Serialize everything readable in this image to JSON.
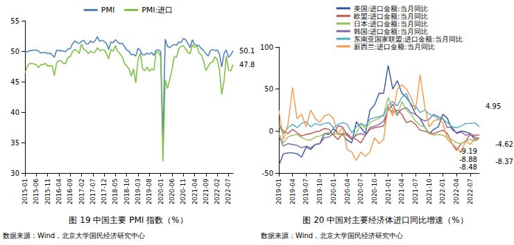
{
  "chart_data": [
    {
      "type": "line",
      "title": "图 19 中国主要 PMI 指数（%）",
      "source": "数据来源：Wind，北京大学国民经济研究中心",
      "x": [
        "2015-01",
        null,
        null,
        null,
        null,
        "2015-06",
        null,
        null,
        null,
        null,
        "2015-11",
        null,
        null,
        null,
        null,
        "2016-04",
        null,
        null,
        null,
        null,
        "2016-09",
        null,
        null,
        null,
        null,
        "2017-02",
        null,
        null,
        null,
        null,
        "2017-07",
        null,
        null,
        null,
        null,
        "2017-12",
        null,
        null,
        null,
        null,
        "2018-05",
        null,
        null,
        null,
        null,
        "2018-10",
        null,
        null,
        null,
        null,
        "2019-03",
        null,
        null,
        null,
        null,
        "2019-08",
        null,
        null,
        null,
        null,
        "2020-01",
        null,
        null,
        null,
        null,
        "2020-06",
        null,
        null,
        null,
        null,
        "2020-11",
        null,
        null,
        null,
        null,
        "2021-04",
        null,
        null,
        null,
        null,
        "2021-09",
        null,
        null,
        null,
        null,
        "2022-02",
        null,
        null,
        null,
        null,
        "2022-07",
        null,
        null
      ],
      "series": [
        {
          "name": "PMI",
          "color": "#4f81bd",
          "values": [
            49.8,
            49.9,
            50.1,
            50.1,
            50.2,
            50.2,
            50.0,
            49.7,
            49.8,
            49.8,
            49.6,
            49.7,
            49.4,
            49.0,
            50.2,
            50.1,
            50.1,
            50.0,
            49.9,
            50.4,
            50.4,
            51.2,
            51.7,
            51.4,
            51.3,
            51.6,
            51.8,
            51.2,
            51.2,
            51.7,
            51.4,
            51.7,
            52.4,
            51.6,
            51.8,
            51.6,
            51.3,
            50.3,
            51.5,
            51.4,
            51.9,
            51.5,
            51.2,
            51.3,
            50.8,
            50.2,
            50.0,
            49.4,
            49.5,
            49.2,
            50.5,
            50.1,
            49.4,
            49.4,
            49.7,
            49.5,
            49.8,
            49.3,
            50.2,
            50.2,
            50.0,
            35.7,
            52.0,
            50.8,
            50.6,
            50.9,
            51.1,
            51.0,
            51.5,
            51.4,
            52.1,
            51.9,
            51.3,
            50.6,
            51.9,
            51.1,
            51.0,
            50.9,
            50.4,
            50.1,
            49.6,
            49.2,
            50.1,
            50.3,
            50.1,
            50.2,
            49.5,
            47.4,
            49.6,
            50.2,
            49.0,
            49.4,
            50.1
          ]
        },
        {
          "name": "PMI:进口",
          "color": "#7cc142",
          "values": [
            46.4,
            47.5,
            48.0,
            48.0,
            47.9,
            47.8,
            47.3,
            47.8,
            47.8,
            48.0,
            47.6,
            47.6,
            47.6,
            46.0,
            48.1,
            48.5,
            48.4,
            48.0,
            48.0,
            49.0,
            49.1,
            49.9,
            50.3,
            50.1,
            49.6,
            51.2,
            50.3,
            50.1,
            49.6,
            50.0,
            49.8,
            49.8,
            50.6,
            50.1,
            50.2,
            50.2,
            49.6,
            48.7,
            50.3,
            50.0,
            50.9,
            50.0,
            49.6,
            49.1,
            48.0,
            47.6,
            47.1,
            45.9,
            47.1,
            44.8,
            48.7,
            49.7,
            47.1,
            46.8,
            47.4,
            46.7,
            47.1,
            46.9,
            49.8,
            49.9,
            49.0,
            31.9,
            45.3,
            43.9,
            45.3,
            47.0,
            49.1,
            49.0,
            50.4,
            50.8,
            50.9,
            50.4,
            49.8,
            49.6,
            51.1,
            50.6,
            50.9,
            49.7,
            49.4,
            48.3,
            46.8,
            47.5,
            48.1,
            48.2,
            49.1,
            48.6,
            46.9,
            42.9,
            45.1,
            49.2,
            46.9,
            46.8,
            47.8
          ]
        }
      ],
      "annotations": [
        {
          "text": "50.1",
          "series": "PMI"
        },
        {
          "text": "47.8",
          "series": "PMI:进口"
        }
      ],
      "ylim": [
        30,
        55
      ],
      "yticks": [
        30,
        35,
        40,
        45,
        50,
        55
      ],
      "grid": false,
      "legend": "top"
    },
    {
      "type": "line",
      "title": "图 20 中国对主要经济体进口同比增速（%）",
      "source": "数据来源：Wind，北京大学国民经济研究中心",
      "x": [
        "2019-01",
        null,
        null,
        "2019-04",
        null,
        null,
        "2019-07",
        null,
        null,
        "2019-10",
        null,
        null,
        "2020-01",
        null,
        null,
        "2020-04",
        null,
        null,
        "2020-07",
        null,
        null,
        "2020-10",
        null,
        null,
        "2021-01",
        null,
        null,
        "2021-04",
        null,
        null,
        "2021-07",
        null,
        null,
        "2021-10",
        null,
        null,
        "2022-01",
        null,
        null,
        "2022-04",
        null,
        null,
        "2022-07",
        null,
        null
      ],
      "series": [
        {
          "name": "美国:进口金额:当月同比",
          "color": "#2f5597",
          "values": [
            -41,
            -27,
            -26,
            -26,
            -27,
            -31,
            -19,
            -22,
            -16,
            -15,
            -3,
            -4,
            3,
            -3,
            -4,
            -11,
            -14,
            11,
            4,
            -3,
            25,
            31,
            45,
            45,
            78,
            50,
            60,
            45,
            40,
            32,
            20,
            15,
            5,
            -3,
            2,
            5,
            20,
            15,
            2,
            -2,
            0,
            -1,
            -3,
            -10,
            -8.88
          ]
        },
        {
          "name": "欧盟:进口金额:当月同比",
          "color": "#c0504d",
          "values": [
            8,
            0,
            -3,
            2,
            -2,
            -6,
            -4,
            -3,
            -1,
            0,
            3,
            2,
            -5,
            -10,
            -3,
            -3,
            -8,
            -10,
            -14,
            -5,
            2,
            4,
            5,
            6,
            28,
            22,
            25,
            20,
            10,
            12,
            8,
            1,
            0,
            -2,
            -3,
            -1,
            1,
            -3,
            -15,
            -23,
            -15,
            -12,
            -4,
            -5,
            -4.62
          ]
        },
        {
          "name": "日本:进口金额:当月同比",
          "color": "#9bbb59",
          "values": [
            -3,
            -14,
            -7,
            -5,
            -4,
            -8,
            -10,
            -11,
            -7,
            -6,
            -3,
            -2,
            -4,
            -3,
            -5,
            -5,
            -10,
            -3,
            9,
            3,
            10,
            13,
            15,
            20,
            40,
            25,
            18,
            35,
            25,
            20,
            12,
            7,
            5,
            -3,
            -5,
            -4,
            -5,
            -8,
            -10,
            -14,
            -15,
            -12,
            -10,
            -12,
            -9.19
          ]
        },
        {
          "name": "韩国:进口金额:当月同比",
          "color": "#8064a2",
          "values": [
            -6,
            -18,
            -15,
            -16,
            -17,
            -20,
            -18,
            -20,
            -16,
            -15,
            -8,
            -7,
            -3,
            6,
            5,
            -5,
            -10,
            -5,
            -3,
            -5,
            4,
            6,
            8,
            12,
            25,
            32,
            20,
            26,
            28,
            22,
            20,
            15,
            12,
            14,
            20,
            17,
            15,
            4,
            5,
            -3,
            -1,
            -5,
            -4,
            -7,
            -8.48
          ]
        },
        {
          "name": "东南亚国家联盟:进口金额:当月同比",
          "color": "#4bacc6",
          "values": [
            6,
            -3,
            4,
            8,
            4,
            9,
            11,
            5,
            9,
            7,
            9,
            10,
            4,
            8,
            10,
            8,
            -2,
            5,
            9,
            6,
            14,
            16,
            17,
            18,
            31,
            35,
            30,
            40,
            45,
            30,
            30,
            22,
            25,
            20,
            18,
            15,
            14,
            10,
            5,
            4,
            6,
            9,
            9,
            10,
            4.95
          ]
        },
        {
          "name": "新西兰:进口金额:当月同比",
          "color": "#f79646",
          "values": [
            25,
            -10,
            8,
            52,
            15,
            20,
            5,
            25,
            15,
            10,
            18,
            20,
            15,
            -5,
            5,
            -22,
            -25,
            -35,
            -25,
            -30,
            -25,
            -8,
            -15,
            -10,
            30,
            18,
            50,
            55,
            50,
            40,
            25,
            67,
            30,
            5,
            12,
            14,
            10,
            -10,
            -15,
            -20,
            -25,
            -12,
            -16,
            -9,
            -8.37
          ]
        }
      ],
      "annotations": [
        {
          "text": "4.95",
          "series": "东南亚国家联盟:进口金额:当月同比"
        },
        {
          "text": "-9.19",
          "series": "日本:进口金额:当月同比"
        },
        {
          "text": "-8.88",
          "series": "美国:进口金额:当月同比"
        },
        {
          "text": "-8.48",
          "series": "韩国:进口金额:当月同比"
        },
        {
          "text": "-4.62",
          "series": "欧盟:进口金额:当月同比"
        },
        {
          "text": "-8.37",
          "series": "新西兰:进口金额:当月同比"
        }
      ],
      "ylim": [
        -50,
        100
      ],
      "yticks": [
        -50,
        0,
        50,
        100
      ],
      "grid": false,
      "legend": "top-left"
    }
  ]
}
